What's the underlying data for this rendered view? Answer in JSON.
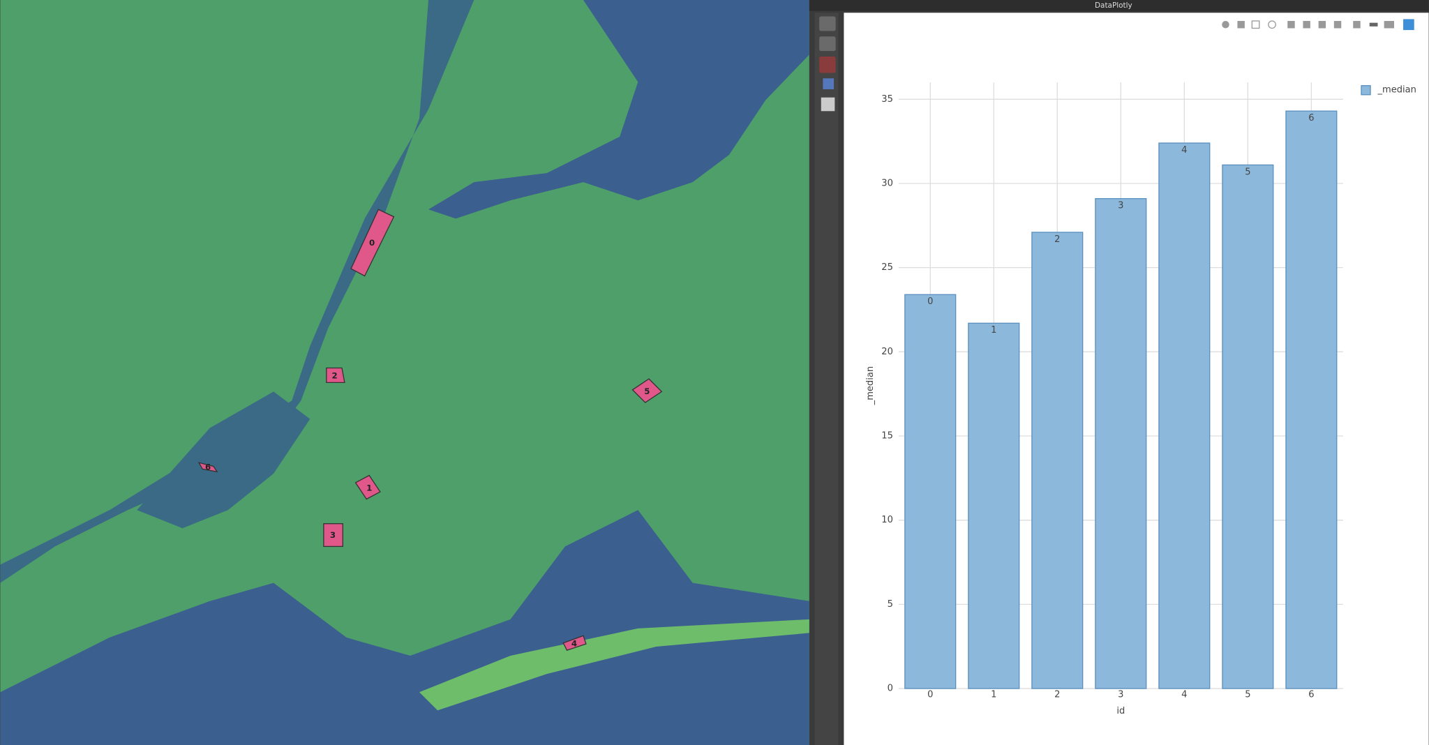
{
  "window_title": "DataPlotly",
  "map_labels": [
    "0",
    "1",
    "2",
    "3",
    "4",
    "5",
    "6"
  ],
  "chart_data": {
    "type": "bar",
    "x_label": "id",
    "y_label": "_median",
    "categories": [
      "0",
      "1",
      "2",
      "3",
      "4",
      "5",
      "6"
    ],
    "series": [
      {
        "name": "_median",
        "color": "#8cb8db",
        "values": [
          23.4,
          21.7,
          27.1,
          29.1,
          32.4,
          31.1,
          34.3
        ]
      }
    ],
    "ylim": [
      0,
      36
    ],
    "yticks": [
      0,
      5,
      10,
      15,
      20,
      25,
      30,
      35
    ],
    "grid": true,
    "legend": "top-right"
  }
}
